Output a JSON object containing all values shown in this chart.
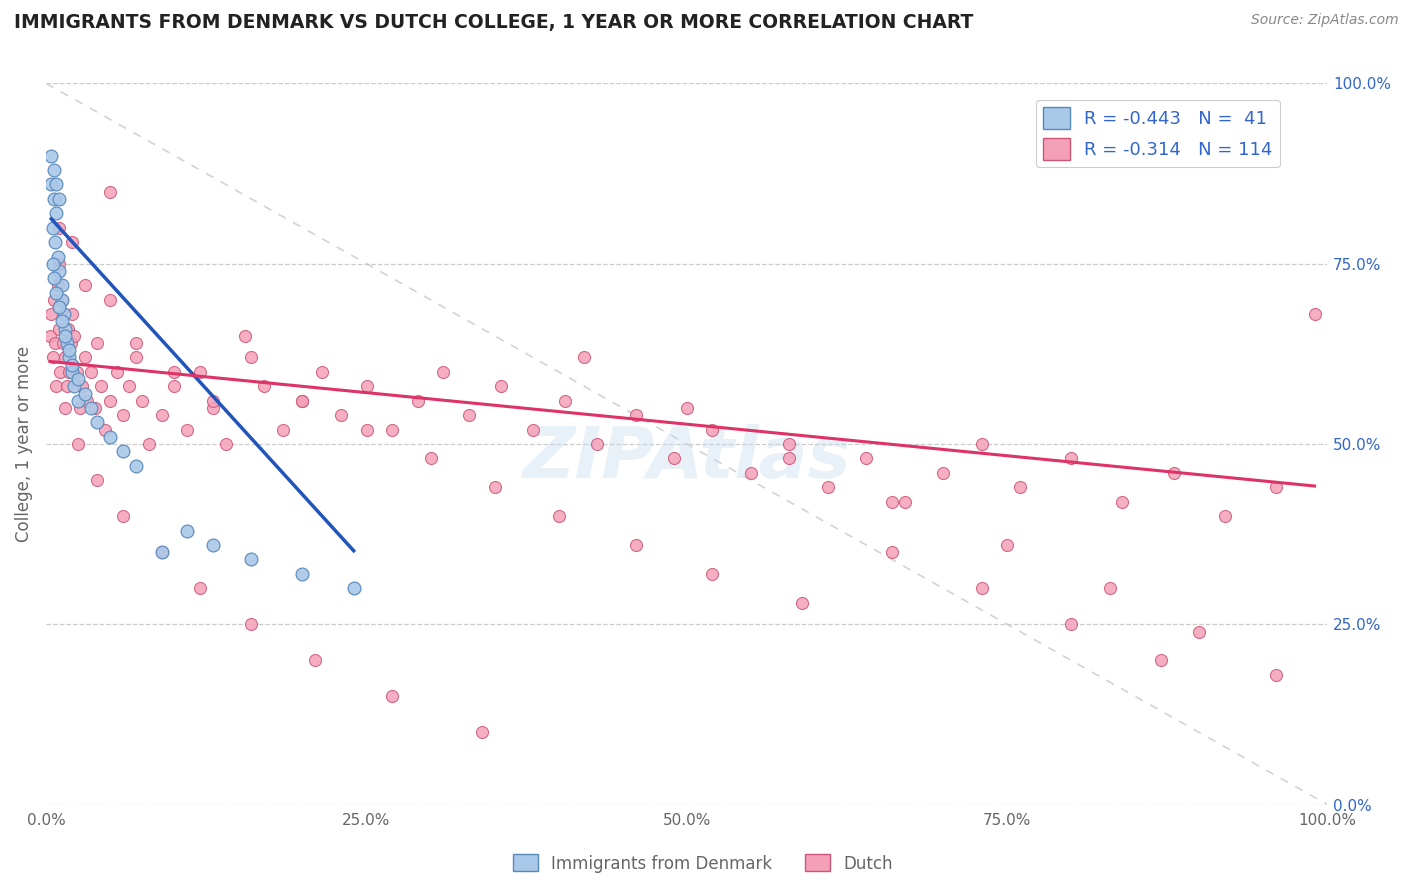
{
  "title": "IMMIGRANTS FROM DENMARK VS DUTCH COLLEGE, 1 YEAR OR MORE CORRELATION CHART",
  "source_text": "Source: ZipAtlas.com",
  "ylabel": "College, 1 year or more",
  "legend_label1": "Immigrants from Denmark",
  "legend_label2": "Dutch",
  "r1": -0.443,
  "n1": 41,
  "r2": -0.314,
  "n2": 114,
  "xlim": [
    0.0,
    1.0
  ],
  "ylim": [
    0.0,
    1.0
  ],
  "xtick_labels": [
    "0.0%",
    "25.0%",
    "50.0%",
    "75.0%",
    "100.0%"
  ],
  "xtick_vals": [
    0.0,
    0.25,
    0.5,
    0.75,
    1.0
  ],
  "ytick_labels_right": [
    "0.0%",
    "25.0%",
    "50.0%",
    "75.0%",
    "100.0%"
  ],
  "ytick_vals": [
    0.0,
    0.25,
    0.5,
    0.75,
    1.0
  ],
  "scatter1_color": "#aac8e8",
  "scatter1_edge": "#5588bb",
  "scatter2_color": "#f4a0b8",
  "scatter2_edge": "#cc5577",
  "line1_color": "#2255bb",
  "line2_color": "#dd3366",
  "ref_line_color": "#c8c8c8",
  "background_color": "#ffffff",
  "grid_color": "#cccccc",
  "title_color": "#222222",
  "label_color": "#3366cc",
  "tick_color": "#666666",
  "watermark_color": "#c5d8ee",
  "scatter1_x": [
    0.004,
    0.006,
    0.008,
    0.004,
    0.006,
    0.008,
    0.01,
    0.005,
    0.007,
    0.009,
    0.01,
    0.012,
    0.012,
    0.014,
    0.015,
    0.016,
    0.018,
    0.02,
    0.022,
    0.025,
    0.005,
    0.006,
    0.008,
    0.01,
    0.012,
    0.015,
    0.018,
    0.02,
    0.025,
    0.03,
    0.035,
    0.04,
    0.05,
    0.06,
    0.07,
    0.09,
    0.11,
    0.13,
    0.16,
    0.2,
    0.24
  ],
  "scatter1_y": [
    0.86,
    0.84,
    0.82,
    0.9,
    0.88,
    0.86,
    0.84,
    0.8,
    0.78,
    0.76,
    0.74,
    0.72,
    0.7,
    0.68,
    0.66,
    0.64,
    0.62,
    0.6,
    0.58,
    0.56,
    0.75,
    0.73,
    0.71,
    0.69,
    0.67,
    0.65,
    0.63,
    0.61,
    0.59,
    0.57,
    0.55,
    0.53,
    0.51,
    0.49,
    0.47,
    0.35,
    0.38,
    0.36,
    0.34,
    0.32,
    0.3
  ],
  "scatter2_x": [
    0.003,
    0.004,
    0.005,
    0.006,
    0.007,
    0.008,
    0.009,
    0.01,
    0.011,
    0.012,
    0.013,
    0.014,
    0.015,
    0.016,
    0.017,
    0.018,
    0.019,
    0.02,
    0.022,
    0.024,
    0.026,
    0.028,
    0.03,
    0.032,
    0.035,
    0.038,
    0.04,
    0.043,
    0.046,
    0.05,
    0.055,
    0.06,
    0.065,
    0.07,
    0.075,
    0.08,
    0.09,
    0.1,
    0.11,
    0.12,
    0.13,
    0.14,
    0.155,
    0.17,
    0.185,
    0.2,
    0.215,
    0.23,
    0.25,
    0.27,
    0.29,
    0.31,
    0.33,
    0.355,
    0.38,
    0.405,
    0.43,
    0.46,
    0.49,
    0.52,
    0.55,
    0.58,
    0.61,
    0.64,
    0.67,
    0.7,
    0.73,
    0.76,
    0.8,
    0.84,
    0.88,
    0.92,
    0.96,
    0.99,
    0.01,
    0.02,
    0.03,
    0.05,
    0.07,
    0.1,
    0.13,
    0.16,
    0.2,
    0.25,
    0.3,
    0.35,
    0.4,
    0.46,
    0.52,
    0.59,
    0.66,
    0.73,
    0.8,
    0.87,
    0.01,
    0.015,
    0.025,
    0.04,
    0.06,
    0.09,
    0.12,
    0.16,
    0.21,
    0.27,
    0.34,
    0.42,
    0.5,
    0.58,
    0.66,
    0.75,
    0.83,
    0.9,
    0.96,
    0.05
  ],
  "scatter2_y": [
    0.65,
    0.68,
    0.62,
    0.7,
    0.64,
    0.58,
    0.72,
    0.66,
    0.6,
    0.7,
    0.64,
    0.68,
    0.62,
    0.58,
    0.66,
    0.6,
    0.64,
    0.68,
    0.65,
    0.6,
    0.55,
    0.58,
    0.62,
    0.56,
    0.6,
    0.55,
    0.64,
    0.58,
    0.52,
    0.56,
    0.6,
    0.54,
    0.58,
    0.62,
    0.56,
    0.5,
    0.54,
    0.58,
    0.52,
    0.6,
    0.55,
    0.5,
    0.65,
    0.58,
    0.52,
    0.56,
    0.6,
    0.54,
    0.58,
    0.52,
    0.56,
    0.6,
    0.54,
    0.58,
    0.52,
    0.56,
    0.5,
    0.54,
    0.48,
    0.52,
    0.46,
    0.5,
    0.44,
    0.48,
    0.42,
    0.46,
    0.5,
    0.44,
    0.48,
    0.42,
    0.46,
    0.4,
    0.44,
    0.68,
    0.75,
    0.78,
    0.72,
    0.7,
    0.64,
    0.6,
    0.56,
    0.62,
    0.56,
    0.52,
    0.48,
    0.44,
    0.4,
    0.36,
    0.32,
    0.28,
    0.35,
    0.3,
    0.25,
    0.2,
    0.8,
    0.55,
    0.5,
    0.45,
    0.4,
    0.35,
    0.3,
    0.25,
    0.2,
    0.15,
    0.1,
    0.62,
    0.55,
    0.48,
    0.42,
    0.36,
    0.3,
    0.24,
    0.18,
    0.85
  ],
  "line1_x": [
    0.004,
    0.24
  ],
  "line1_y_intercept": 0.82,
  "line1_slope": -1.95,
  "line2_x": [
    0.003,
    0.99
  ],
  "line2_y_intercept": 0.615,
  "line2_slope": -0.175
}
